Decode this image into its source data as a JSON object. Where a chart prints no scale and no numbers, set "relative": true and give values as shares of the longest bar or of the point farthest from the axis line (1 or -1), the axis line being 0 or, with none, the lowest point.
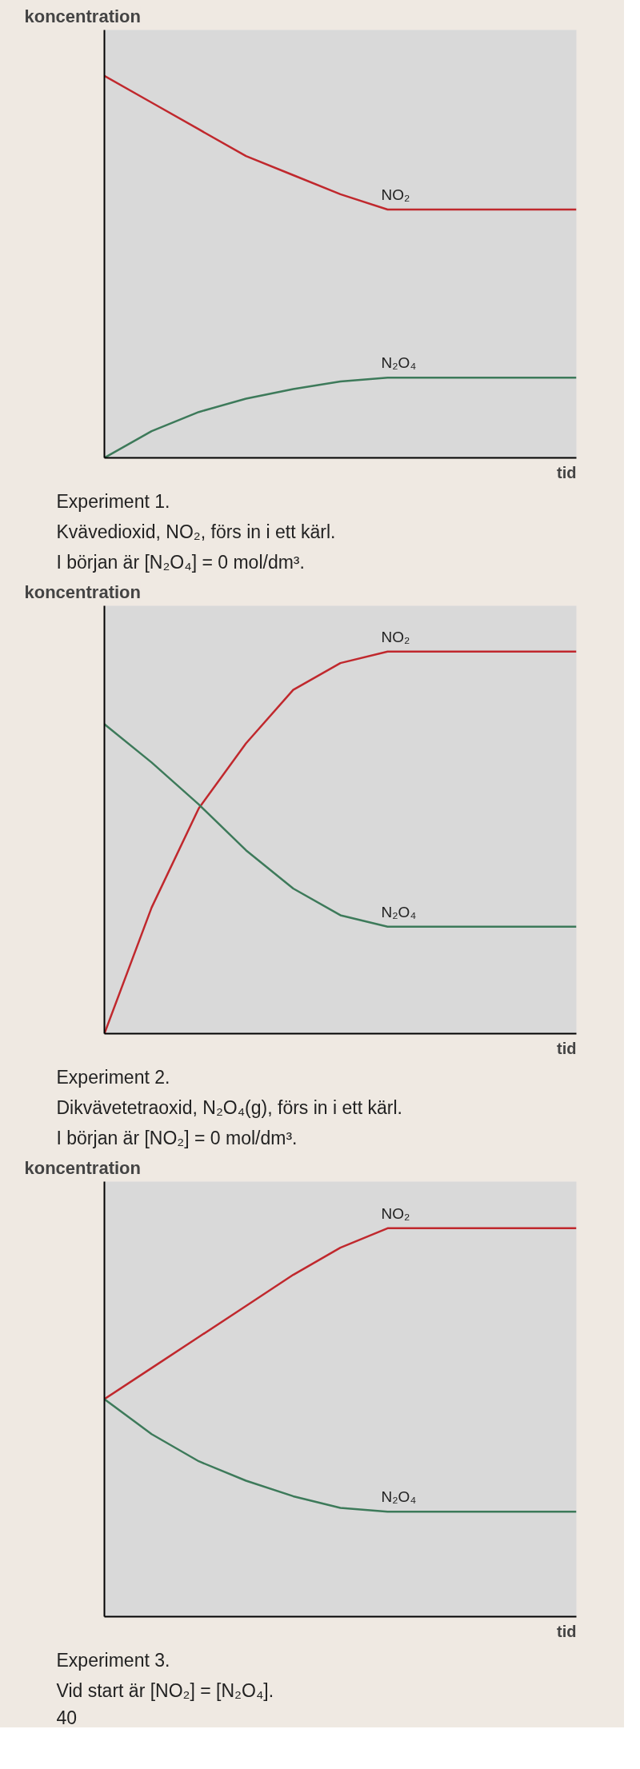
{
  "chart_data": [
    {
      "type": "line",
      "relative": true,
      "ylabel": "koncentration",
      "xlabel": "tid",
      "categories": [
        null,
        null,
        null,
        null,
        null,
        null,
        null,
        null,
        null,
        null,
        null
      ],
      "series": [
        {
          "name": "NO₂",
          "color": "#c0282d",
          "values": [
            1.0,
            0.93,
            0.86,
            0.79,
            0.74,
            0.69,
            0.65,
            0.65,
            0.65,
            0.65,
            0.65
          ]
        },
        {
          "name": "N₂O₄",
          "color": "#3d7a5a",
          "values": [
            0,
            0.07,
            0.12,
            0.155,
            0.18,
            0.2,
            0.21,
            0.21,
            0.21,
            0.21,
            0.21
          ]
        }
      ],
      "annotations": [
        "Experiment 1.",
        "Kvävedioxid, NO₂, förs in i ett kärl.",
        "I början är [N₂O₄] = 0 mol/dm³."
      ]
    },
    {
      "type": "line",
      "relative": true,
      "ylabel": "koncentration",
      "xlabel": "tid",
      "categories": [
        null,
        null,
        null,
        null,
        null,
        null,
        null,
        null,
        null,
        null,
        null
      ],
      "series": [
        {
          "name": "NO₂",
          "color": "#c0282d",
          "values": [
            0,
            0.33,
            0.59,
            0.76,
            0.9,
            0.97,
            1.0,
            1.0,
            1.0,
            1.0,
            1.0
          ]
        },
        {
          "name": "N₂O₄",
          "color": "#3d7a5a",
          "values": [
            0.81,
            0.71,
            0.6,
            0.48,
            0.38,
            0.31,
            0.28,
            0.28,
            0.28,
            0.28,
            0.28
          ]
        }
      ],
      "annotations": [
        "Experiment 2.",
        "Dikvävetetraoxid, N₂O₄(g), förs in i ett kärl.",
        "I början är [NO₂] = 0 mol/dm³."
      ]
    },
    {
      "type": "line",
      "relative": true,
      "ylabel": "koncentration",
      "xlabel": "tid",
      "categories": [
        null,
        null,
        null,
        null,
        null,
        null,
        null,
        null,
        null,
        null,
        null
      ],
      "series": [
        {
          "name": "NO₂",
          "color": "#c0282d",
          "values": [
            0.56,
            0.64,
            0.72,
            0.8,
            0.88,
            0.95,
            1.0,
            1.0,
            1.0,
            1.0,
            1.0
          ]
        },
        {
          "name": "N₂O₄",
          "color": "#3d7a5a",
          "values": [
            0.56,
            0.47,
            0.4,
            0.35,
            0.31,
            0.28,
            0.27,
            0.27,
            0.27,
            0.27,
            0.27
          ]
        }
      ],
      "annotations": [
        "Experiment 3.",
        "Vid start är [NO₂] = [N₂O₄].",
        "40"
      ]
    }
  ]
}
